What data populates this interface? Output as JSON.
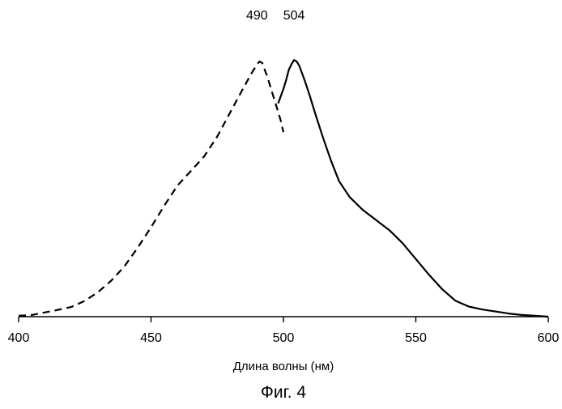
{
  "chart_data": {
    "type": "line",
    "title": "",
    "xlabel": "Длина волны (нм)",
    "ylabel": "",
    "xlim": [
      400,
      600
    ],
    "ylim": [
      0,
      1
    ],
    "x_ticks": [
      400,
      450,
      500,
      550,
      600
    ],
    "x_tick_labels": [
      "400",
      "450",
      "500",
      "550",
      "600"
    ],
    "y_axis_visible": false,
    "grid": false,
    "legend": "none",
    "series": [
      {
        "style": "dashed",
        "color": "#000000",
        "points": [
          [
            400,
            0.003
          ],
          [
            405,
            0.006
          ],
          [
            410,
            0.015
          ],
          [
            415,
            0.024
          ],
          [
            420,
            0.034
          ],
          [
            425,
            0.055
          ],
          [
            430,
            0.085
          ],
          [
            435,
            0.125
          ],
          [
            440,
            0.175
          ],
          [
            445,
            0.24
          ],
          [
            450,
            0.31
          ],
          [
            455,
            0.385
          ],
          [
            460,
            0.455
          ],
          [
            465,
            0.505
          ],
          [
            470,
            0.555
          ],
          [
            475,
            0.625
          ],
          [
            480,
            0.71
          ],
          [
            485,
            0.795
          ],
          [
            488,
            0.845
          ],
          [
            490,
            0.875
          ],
          [
            491,
            0.885
          ],
          [
            492,
            0.88
          ],
          [
            494,
            0.83
          ],
          [
            496,
            0.77
          ],
          [
            498,
            0.71
          ],
          [
            499,
            0.68
          ],
          [
            500,
            0.64
          ]
        ]
      },
      {
        "style": "solid",
        "color": "#000000",
        "points": [
          [
            498,
            0.74
          ],
          [
            500,
            0.79
          ],
          [
            501,
            0.82
          ],
          [
            502,
            0.855
          ],
          [
            503,
            0.875
          ],
          [
            504,
            0.89
          ],
          [
            505,
            0.885
          ],
          [
            506,
            0.87
          ],
          [
            508,
            0.82
          ],
          [
            510,
            0.765
          ],
          [
            512,
            0.705
          ],
          [
            515,
            0.62
          ],
          [
            518,
            0.54
          ],
          [
            521,
            0.47
          ],
          [
            525,
            0.415
          ],
          [
            530,
            0.37
          ],
          [
            535,
            0.335
          ],
          [
            540,
            0.3
          ],
          [
            545,
            0.255
          ],
          [
            550,
            0.2
          ],
          [
            555,
            0.145
          ],
          [
            560,
            0.095
          ],
          [
            565,
            0.055
          ],
          [
            570,
            0.035
          ],
          [
            575,
            0.025
          ],
          [
            580,
            0.018
          ],
          [
            585,
            0.011
          ],
          [
            590,
            0.006
          ],
          [
            595,
            0.003
          ],
          [
            600,
            0.0
          ]
        ]
      }
    ],
    "annotations": [
      {
        "text": "490",
        "x": 490
      },
      {
        "text": "504",
        "x": 504
      }
    ]
  },
  "figure": {
    "caption": "Фиг. 4"
  }
}
